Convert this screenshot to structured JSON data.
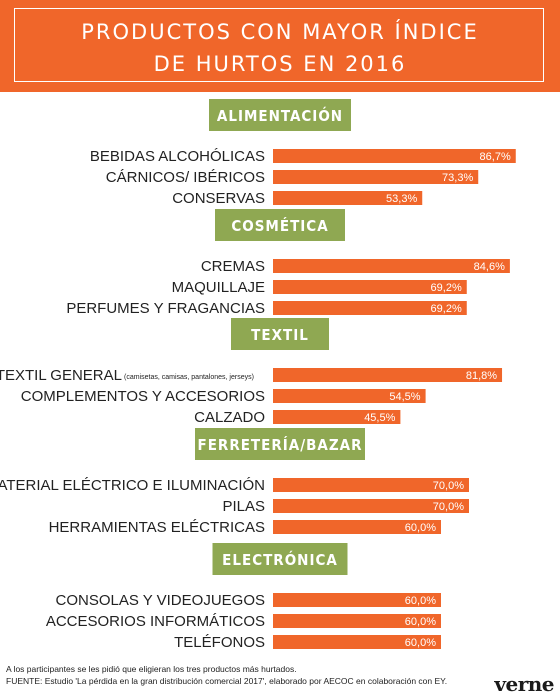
{
  "header": {
    "title_line1": "PRODUCTOS CON MAYOR ÍNDICE",
    "title_line2": "DE HURTOS EN 2016"
  },
  "colors": {
    "banner": "#f0662a",
    "bar": "#f0662a",
    "category": "#8fa852"
  },
  "chart_data": {
    "type": "bar",
    "orientation": "horizontal",
    "unit": "%",
    "xlim": [
      0,
      100
    ],
    "grid": false,
    "groups": [
      {
        "category": "ALIMENTACIÓN",
        "items": [
          {
            "label": "BEBIDAS ALCOHÓLICAS",
            "value": 86.7,
            "value_label": "86,7%"
          },
          {
            "label": "CÁRNICOS/ IBÉRICOS",
            "value": 73.3,
            "value_label": "73,3%"
          },
          {
            "label": "CONSERVAS",
            "value": 53.3,
            "value_label": "53,3%"
          }
        ]
      },
      {
        "category": "COSMÉTICA",
        "items": [
          {
            "label": "CREMAS",
            "value": 84.6,
            "value_label": "84,6%"
          },
          {
            "label": "MAQUILLAJE",
            "value": 69.2,
            "value_label": "69,2%"
          },
          {
            "label": "PERFUMES Y FRAGANCIAS",
            "value": 69.2,
            "value_label": "69,2%"
          }
        ]
      },
      {
        "category": "TEXTIL",
        "items": [
          {
            "label": "TEXTIL GENERAL",
            "note": "(camisetas, camisas, pantalones, jerseys)",
            "value": 81.8,
            "value_label": "81,8%"
          },
          {
            "label": "COMPLEMENTOS Y ACCESORIOS",
            "value": 54.5,
            "value_label": "54,5%"
          },
          {
            "label": "CALZADO",
            "value": 45.5,
            "value_label": "45,5%"
          }
        ]
      },
      {
        "category": "FERRETERÍA/BAZAR",
        "items": [
          {
            "label": "MATERIAL ELÉCTRICO E ILUMINACIÓN",
            "value": 70.0,
            "value_label": "70,0%"
          },
          {
            "label": "PILAS",
            "value": 70.0,
            "value_label": "70,0%"
          },
          {
            "label": "HERRAMIENTAS ELÉCTRICAS",
            "value": 60.0,
            "value_label": "60,0%"
          }
        ]
      },
      {
        "category": "ELECTRÓNICA",
        "items": [
          {
            "label": "CONSOLAS Y VIDEOJUEGOS",
            "value": 60.0,
            "value_label": "60,0%"
          },
          {
            "label": "ACCESORIOS INFORMÁTICOS",
            "value": 60.0,
            "value_label": "60,0%"
          },
          {
            "label": "TELÉFONOS",
            "value": 60.0,
            "value_label": "60,0%"
          }
        ]
      }
    ]
  },
  "footer": {
    "note": "A los participantes se les pidió que eligieran los tres productos más hurtados.",
    "source": "FUENTE: Estudio 'La pérdida en la gran distribución comercial 2017', elaborado por AECOC en colaboración con EY.",
    "logo": "verne"
  }
}
